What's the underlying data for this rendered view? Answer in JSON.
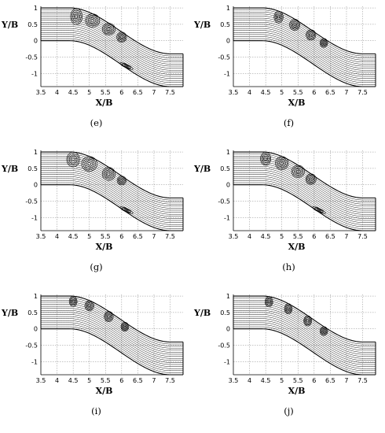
{
  "figure": {
    "panels": [
      {
        "caption": "(e)",
        "xlabel": "X/B",
        "ylabel": "Y/B"
      },
      {
        "caption": "(f)",
        "xlabel": "X/B",
        "ylabel": "Y/B"
      },
      {
        "caption": "(g)",
        "xlabel": "X/B",
        "ylabel": "Y/B"
      },
      {
        "caption": "(h)",
        "xlabel": "X/B",
        "ylabel": "Y/B"
      },
      {
        "caption": "(i)",
        "xlabel": "X/B",
        "ylabel": "Y/B"
      },
      {
        "caption": "(j)",
        "xlabel": "X/B",
        "ylabel": "Y/B"
      }
    ],
    "x_ticks": [
      "3.5",
      "4",
      "4.5",
      "5",
      "5.5",
      "6",
      "6.5",
      "7",
      "7.5"
    ],
    "y_ticks": [
      "1",
      "0.5",
      "0",
      "-0.5",
      "-1"
    ],
    "xlim": [
      3.5,
      7.9
    ],
    "ylim": [
      -1.4,
      1.05
    ],
    "grid": true,
    "channel": {
      "x_start": 3.5,
      "x_end": 7.9,
      "upper_wall_y_start": 1.0,
      "upper_wall_y_end": -0.4,
      "lower_wall_y_start": 0.0,
      "lower_wall_y_end": -1.4,
      "bend_x_range": [
        4.4,
        7.5
      ],
      "streamline_count": 16
    },
    "line_color": "#000000",
    "grid_color": "#8a8a8a"
  }
}
